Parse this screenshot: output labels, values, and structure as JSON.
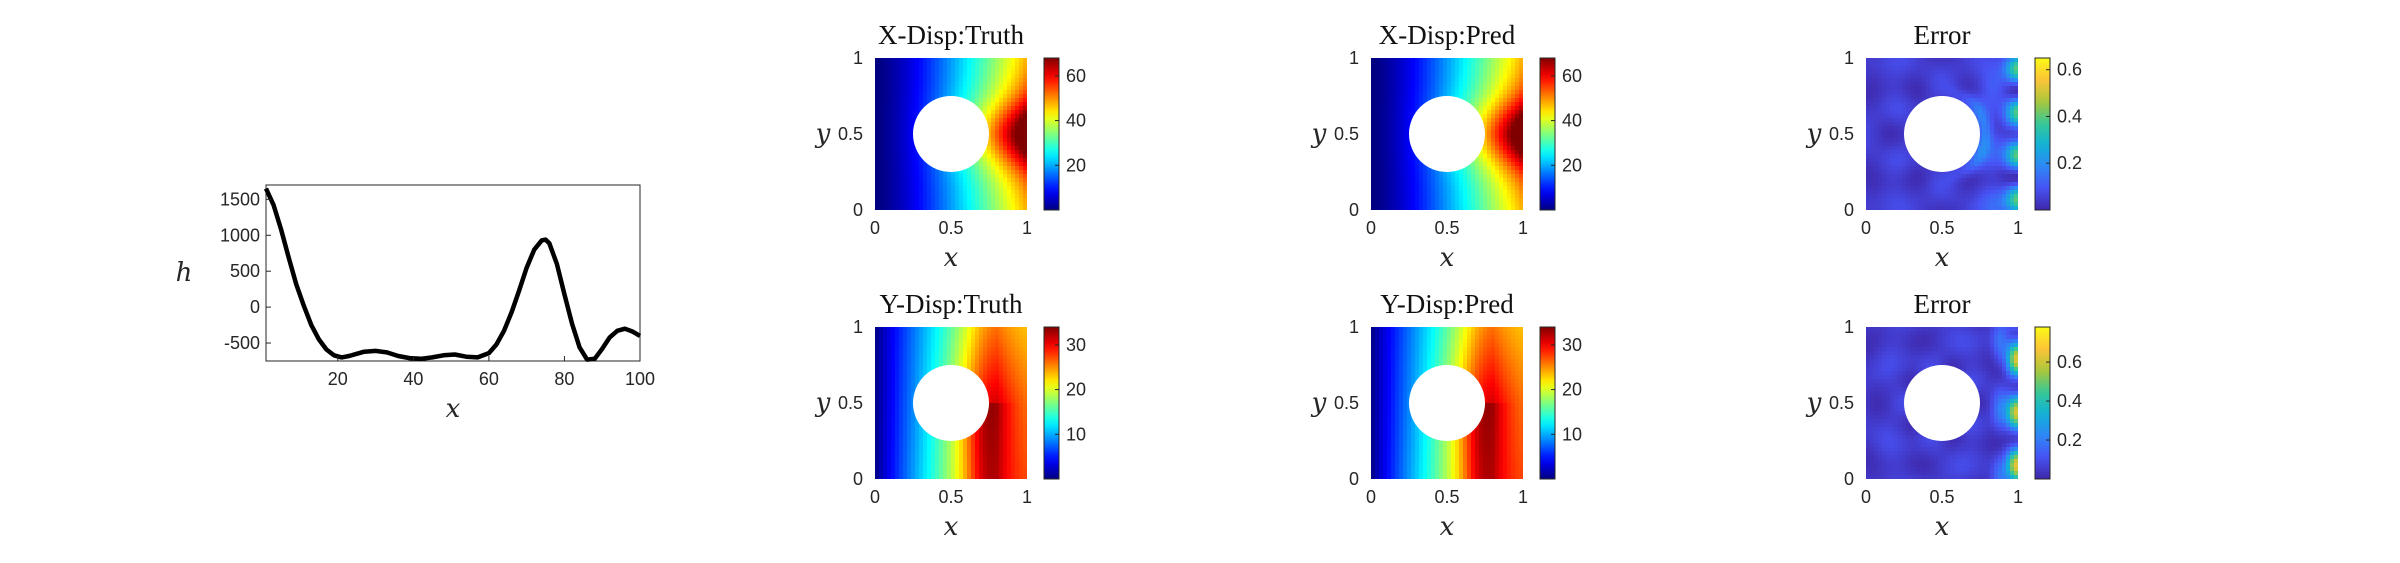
{
  "chart_data": [
    {
      "type": "line",
      "xlabel": "x",
      "ylabel": "h",
      "xlim": [
        1,
        100
      ],
      "ylim": [
        -750,
        1700
      ],
      "xticks": [
        "20",
        "40",
        "60",
        "80",
        "100"
      ],
      "yticks": [
        "-500",
        "0",
        "500",
        "1000",
        "1500"
      ],
      "x": [
        1,
        3,
        5,
        7,
        9,
        11,
        13,
        15,
        17,
        19,
        21,
        23,
        25,
        27,
        30,
        33,
        36,
        39,
        42,
        45,
        48,
        51,
        54,
        57,
        60,
        62,
        64,
        66,
        68,
        70,
        72,
        74,
        75,
        76,
        78,
        80,
        82,
        84,
        86,
        88,
        90,
        92,
        94,
        96,
        98,
        100
      ],
      "y": [
        1650,
        1420,
        1080,
        690,
        320,
        20,
        -250,
        -450,
        -590,
        -670,
        -700,
        -680,
        -650,
        -620,
        -610,
        -630,
        -680,
        -710,
        -720,
        -700,
        -670,
        -660,
        -690,
        -700,
        -640,
        -520,
        -330,
        -70,
        230,
        550,
        800,
        930,
        940,
        890,
        600,
        180,
        -230,
        -560,
        -730,
        -720,
        -580,
        -420,
        -330,
        -300,
        -340,
        -400
      ],
      "grid": false
    },
    {
      "type": "heatmap",
      "title": "X-Disp:Truth",
      "xlabel": "x",
      "ylabel": "y",
      "xlim": [
        0,
        1
      ],
      "ylim": [
        0,
        1
      ],
      "xticks": [
        "0",
        "0.5",
        "1"
      ],
      "yticks": [
        "0",
        "0.5",
        "1"
      ],
      "colormap": "jet",
      "colorbar_ticks": [
        "20",
        "40",
        "60"
      ],
      "clim": [
        0,
        68
      ],
      "hole": {
        "center": [
          0.5,
          0.5
        ],
        "radius": 0.25
      },
      "field": "x-displacement"
    },
    {
      "type": "heatmap",
      "title": "X-Disp:Pred",
      "xlabel": "x",
      "ylabel": "y",
      "xlim": [
        0,
        1
      ],
      "ylim": [
        0,
        1
      ],
      "xticks": [
        "0",
        "0.5",
        "1"
      ],
      "yticks": [
        "0",
        "0.5",
        "1"
      ],
      "colormap": "jet",
      "colorbar_ticks": [
        "20",
        "40",
        "60"
      ],
      "clim": [
        0,
        68
      ],
      "hole": {
        "center": [
          0.5,
          0.5
        ],
        "radius": 0.25
      },
      "field": "x-displacement"
    },
    {
      "type": "heatmap",
      "title": "Error",
      "xlabel": "x",
      "ylabel": "y",
      "xlim": [
        0,
        1
      ],
      "ylim": [
        0,
        1
      ],
      "xticks": [
        "0",
        "0.5",
        "1"
      ],
      "yticks": [
        "0",
        "0.5",
        "1"
      ],
      "colormap": "parula",
      "colorbar_ticks": [
        "0.2",
        "0.4",
        "0.6"
      ],
      "clim": [
        0,
        0.65
      ],
      "hole": {
        "center": [
          0.5,
          0.5
        ],
        "radius": 0.25
      },
      "field": "x-error"
    },
    {
      "type": "heatmap",
      "title": "Y-Disp:Truth",
      "xlabel": "x",
      "ylabel": "y",
      "xlim": [
        0,
        1
      ],
      "ylim": [
        0,
        1
      ],
      "xticks": [
        "0",
        "0.5",
        "1"
      ],
      "yticks": [
        "0",
        "0.5",
        "1"
      ],
      "colormap": "jet",
      "colorbar_ticks": [
        "10",
        "20",
        "30"
      ],
      "clim": [
        0,
        34
      ],
      "hole": {
        "center": [
          0.5,
          0.5
        ],
        "radius": 0.25
      },
      "field": "y-displacement"
    },
    {
      "type": "heatmap",
      "title": "Y-Disp:Pred",
      "xlabel": "x",
      "ylabel": "y",
      "xlim": [
        0,
        1
      ],
      "ylim": [
        0,
        1
      ],
      "xticks": [
        "0",
        "0.5",
        "1"
      ],
      "yticks": [
        "0",
        "0.5",
        "1"
      ],
      "colormap": "jet",
      "colorbar_ticks": [
        "10",
        "20",
        "30"
      ],
      "clim": [
        0,
        34
      ],
      "hole": {
        "center": [
          0.5,
          0.5
        ],
        "radius": 0.25
      },
      "field": "y-displacement"
    },
    {
      "type": "heatmap",
      "title": "Error",
      "xlabel": "x",
      "ylabel": "y",
      "xlim": [
        0,
        1
      ],
      "ylim": [
        0,
        1
      ],
      "xticks": [
        "0",
        "0.5",
        "1"
      ],
      "yticks": [
        "0",
        "0.5",
        "1"
      ],
      "colormap": "parula",
      "colorbar_ticks": [
        "0.2",
        "0.4",
        "0.6"
      ],
      "clim": [
        0,
        0.78
      ],
      "hole": {
        "center": [
          0.5,
          0.5
        ],
        "radius": 0.25
      },
      "field": "y-error"
    }
  ]
}
